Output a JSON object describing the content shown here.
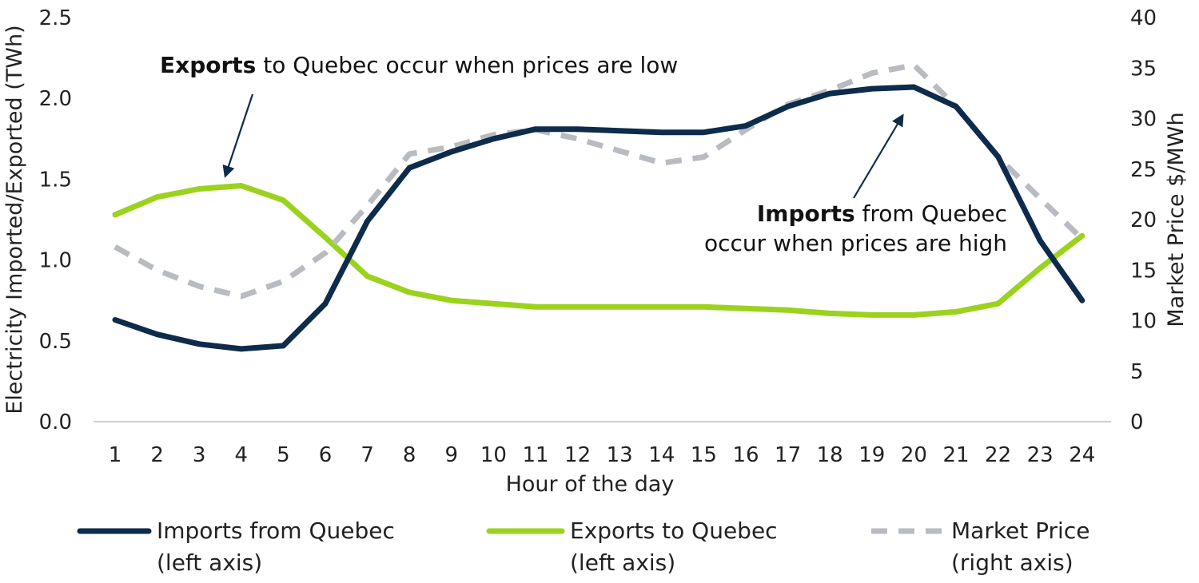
{
  "chart_data": {
    "type": "line",
    "x": [
      1,
      2,
      3,
      4,
      5,
      6,
      7,
      8,
      9,
      10,
      11,
      12,
      13,
      14,
      15,
      16,
      17,
      18,
      19,
      20,
      21,
      22,
      23,
      24
    ],
    "xlabel": "Hour of the day",
    "ylabel_left": "Electricity Imported/Exported (TWh)",
    "ylabel_right": "Market Price $/MWh",
    "ylim_left": [
      0,
      2.5
    ],
    "ylim_right": [
      0,
      40
    ],
    "yticks_left": [
      "0.0",
      "0.5",
      "1.0",
      "1.5",
      "2.0",
      "2.5"
    ],
    "yticks_right": [
      "0",
      "5",
      "10",
      "15",
      "20",
      "25",
      "30",
      "35",
      "40"
    ],
    "grid": false,
    "series": [
      {
        "name": "Imports from Quebec",
        "legend_lines": [
          "Imports from Quebec",
          "(left axis)"
        ],
        "axis": "left",
        "color": "#0d2b4a",
        "style": "solid",
        "values": [
          0.63,
          0.54,
          0.48,
          0.45,
          0.47,
          0.73,
          1.24,
          1.57,
          1.67,
          1.75,
          1.81,
          1.81,
          1.8,
          1.79,
          1.79,
          1.83,
          1.95,
          2.03,
          2.06,
          2.07,
          1.95,
          1.64,
          1.12,
          0.75
        ]
      },
      {
        "name": "Exports to Quebec",
        "legend_lines": [
          "Exports to Quebec",
          "(left axis)"
        ],
        "axis": "left",
        "color": "#9bd21e",
        "style": "solid",
        "values": [
          1.28,
          1.39,
          1.44,
          1.46,
          1.37,
          1.14,
          0.9,
          0.8,
          0.75,
          0.73,
          0.71,
          0.71,
          0.71,
          0.71,
          0.71,
          0.7,
          0.69,
          0.67,
          0.66,
          0.66,
          0.68,
          0.73,
          0.95,
          1.15
        ]
      },
      {
        "name": "Market Price",
        "legend_lines": [
          "Market Price",
          "(right axis)"
        ],
        "axis": "right",
        "color": "#b8bcc0",
        "style": "dashed",
        "values": [
          17.3,
          15.0,
          13.4,
          12.4,
          13.9,
          16.7,
          21.4,
          26.5,
          27.2,
          28.4,
          28.9,
          28.0,
          26.8,
          25.6,
          26.2,
          28.9,
          31.4,
          32.8,
          34.5,
          35.3,
          31.2,
          26.2,
          22.1,
          18.1
        ]
      }
    ],
    "annotations": [
      {
        "bold": "Exports",
        "lines": [
          " to Quebec occur when prices are low"
        ]
      },
      {
        "bold": "Imports",
        "lines": [
          " from Quebec",
          "occur when prices are high"
        ]
      }
    ]
  }
}
